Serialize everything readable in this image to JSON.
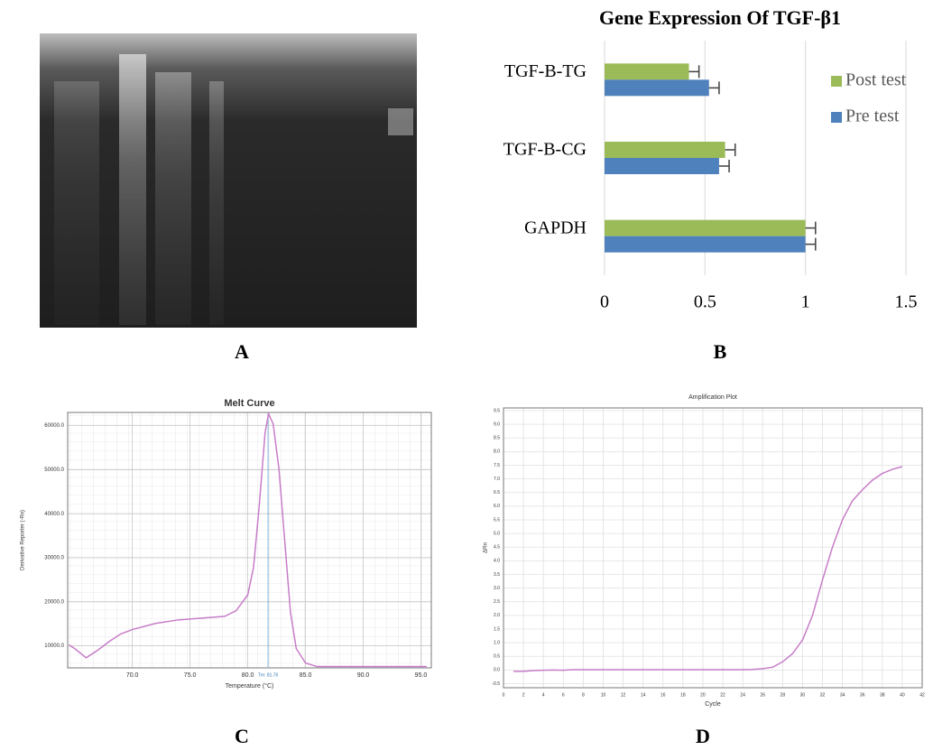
{
  "chart_data": [
    {
      "type": "image",
      "label": "A"
    },
    {
      "type": "hbar",
      "label": "B",
      "title": "Gene Expression Of TGF-β1",
      "categories": [
        "TGF-B-TG",
        "TGF-B-CG",
        "GAPDH"
      ],
      "series": [
        {
          "name": "Post test",
          "color": "#9bbb59",
          "values": [
            0.42,
            0.6,
            1
          ],
          "errors": [
            0.05,
            0.05,
            0.05
          ]
        },
        {
          "name": "Pre test",
          "color": "#4f81bd",
          "values": [
            0.52,
            0.57,
            1
          ],
          "errors": [
            0.05,
            0.05,
            0.05
          ]
        }
      ],
      "xlim": [
        0,
        1.5
      ],
      "xticks": [
        0,
        0.5,
        1,
        1.5
      ],
      "grid": true,
      "legend": "right"
    },
    {
      "type": "line",
      "label": "C",
      "title": "Melt Curve",
      "xlabel": "Temperature (°C)",
      "ylabel": "Derivative Reporter (-Rn)",
      "x": [
        64.5,
        65,
        66,
        67,
        68,
        69,
        70,
        72,
        74,
        76,
        78,
        79,
        80,
        80.5,
        81,
        81.5,
        81.8,
        82.2,
        82.7,
        83.2,
        83.7,
        84.2,
        85,
        86,
        90,
        95.5
      ],
      "series": [
        {
          "color": "#c77dc7",
          "values": [
            10200,
            9400,
            7300,
            9000,
            11000,
            12700,
            13700,
            15100,
            15900,
            16300,
            16700,
            18000,
            21600,
            27800,
            42000,
            58400,
            62700,
            60400,
            50200,
            33900,
            17600,
            9400,
            6100,
            5300,
            5300,
            5300
          ]
        }
      ],
      "xlim": [
        64.4,
        95.9
      ],
      "xticks": [
        {
          "value": 70,
          "label": "70.0"
        },
        {
          "value": 75,
          "label": "75.0"
        },
        {
          "value": 80,
          "label": "80.0"
        },
        {
          "value": 85,
          "label": "85.0"
        },
        {
          "value": 90,
          "label": "90.0"
        },
        {
          "value": 95,
          "label": "95.0"
        }
      ],
      "ylim": [
        5000,
        63000
      ],
      "yticks": [
        {
          "value": 10000,
          "label": "10000.0"
        },
        {
          "value": 20000,
          "label": "20000.0"
        },
        {
          "value": 30000,
          "label": "30000.0"
        },
        {
          "value": 40000,
          "label": "40000.0"
        },
        {
          "value": 50000,
          "label": "50000.0"
        },
        {
          "value": 60000,
          "label": "60000.0"
        }
      ],
      "grid": true,
      "annotation": {
        "value": 81.76,
        "label": "Tm: 81.76"
      }
    },
    {
      "type": "line",
      "label": "D",
      "title": "Amplification Plot",
      "xlabel": "Cycle",
      "ylabel": "ΔRn",
      "x": [
        1,
        2,
        3,
        4,
        5,
        6,
        7,
        8,
        9,
        10,
        11,
        12,
        13,
        14,
        15,
        16,
        17,
        18,
        19,
        20,
        21,
        22,
        23,
        24,
        25,
        26,
        27,
        28,
        29,
        30,
        31,
        32,
        33,
        34,
        35,
        36,
        37,
        38,
        39,
        40
      ],
      "series": [
        {
          "color": "#c77dc7",
          "values": [
            -0.05,
            -0.05,
            -0.02,
            -0.01,
            0,
            -0.01,
            0.01,
            0.01,
            0.01,
            0.01,
            0.01,
            0.01,
            0.01,
            0.01,
            0.01,
            0.01,
            0.01,
            0.01,
            0.01,
            0.01,
            0.01,
            0.01,
            0.01,
            0.01,
            0.02,
            0.05,
            0.1,
            0.3,
            0.6,
            1.1,
            2.0,
            3.3,
            4.5,
            5.5,
            6.2,
            6.6,
            6.95,
            7.2,
            7.35,
            7.45
          ]
        }
      ],
      "xlim": [
        0,
        42
      ],
      "xticks": [
        0,
        2,
        4,
        6,
        8,
        10,
        12,
        14,
        16,
        18,
        20,
        22,
        24,
        26,
        28,
        30,
        32,
        34,
        36,
        38,
        40,
        42
      ],
      "ylim": [
        -0.65,
        9.6
      ],
      "yticks": [
        -0.5,
        {
          "value": 0,
          "label": "0.0"
        },
        0.5,
        {
          "value": 1,
          "label": "1.0"
        },
        1.5,
        {
          "value": 2,
          "label": "2.0"
        },
        2.5,
        {
          "value": 3,
          "label": "3.0"
        },
        3.5,
        {
          "value": 4,
          "label": "4.0"
        },
        4.5,
        {
          "value": 5,
          "label": "5.0"
        },
        5.5,
        {
          "value": 6,
          "label": "6.0"
        },
        6.5,
        {
          "value": 7,
          "label": "7.0"
        },
        7.5,
        {
          "value": 8,
          "label": "8.0"
        },
        8.5,
        {
          "value": 9,
          "label": "9.0"
        },
        9.5
      ],
      "grid": true
    }
  ]
}
